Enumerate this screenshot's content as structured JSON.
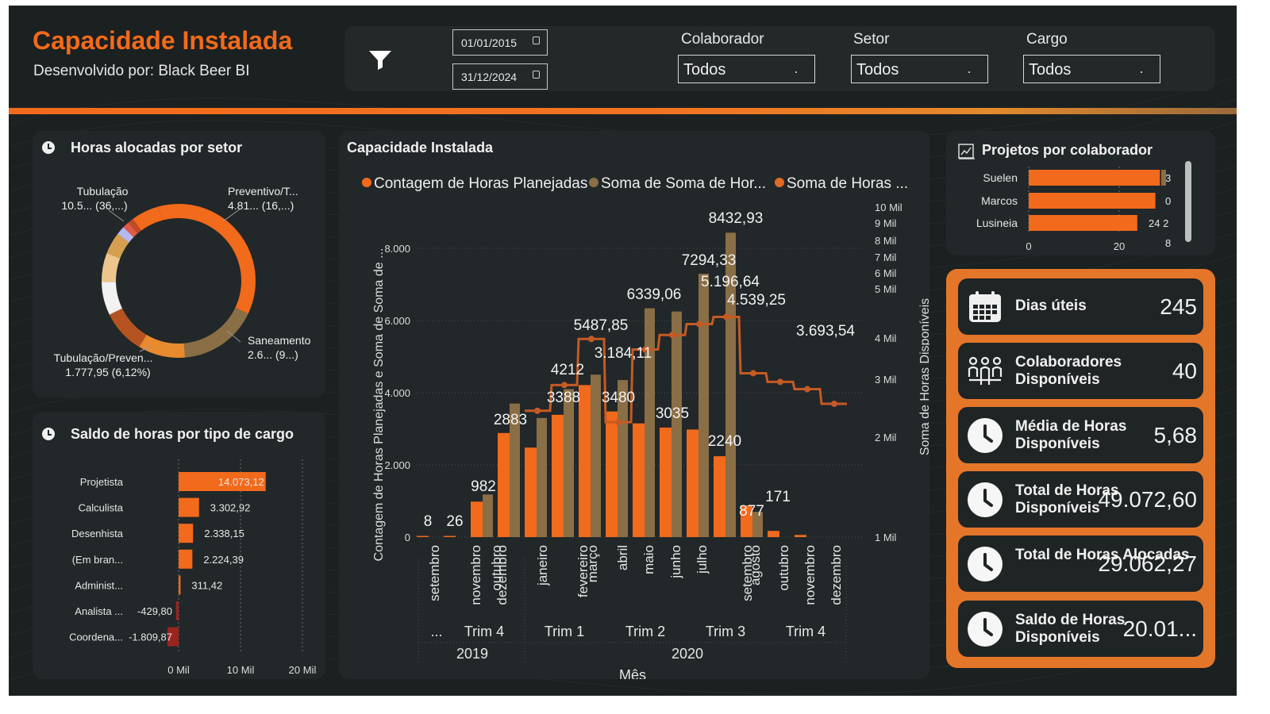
{
  "header": {
    "title": "Capacidade Instalada",
    "subtitle": "Desenvolvido por: Black Beer BI"
  },
  "filters": {
    "date_start": "01/01/2015",
    "date_end": "31/12/2024",
    "colaborador": {
      "label": "Colaborador",
      "value": "Todos"
    },
    "setor": {
      "label": "Setor",
      "value": "Todos"
    },
    "cargo": {
      "label": "Cargo",
      "value": "Todos"
    },
    "icons": {
      "filter": "funnel-icon",
      "calendar": "calendar-icon"
    }
  },
  "colors": {
    "background": "#1b2021",
    "card": "#222729",
    "accent": "#f26a1b",
    "tan": "#8a6e45",
    "kpi_panel": "#e4762a"
  },
  "chart_data": [
    {
      "id": "horas-setor",
      "type": "pie",
      "title": "Horas alocadas por setor",
      "donut": true,
      "labels": [
        {
          "line1": "Tubulação",
          "line2": "10.5... (36,...)"
        },
        {
          "line1": "Preventivo/T...",
          "line2": "4.81... (16,...)"
        },
        {
          "line1": "Saneamento",
          "line2": "2.6... (9...)"
        },
        {
          "line1": "Tubulação/Preven...",
          "line2": "1.777,95 (6,12%)"
        }
      ],
      "slices": [
        {
          "pct": 36.2,
          "color": "#f26a1b"
        },
        {
          "pct": 16.6,
          "color": "#8a6e45"
        },
        {
          "pct": 9.9,
          "color": "#e88a2e"
        },
        {
          "pct": 9.2,
          "color": "#b55420"
        },
        {
          "pct": 7.0,
          "color": "#f2f2f2"
        },
        {
          "pct": 6.1,
          "color": "#eec58c"
        },
        {
          "pct": 4.6,
          "color": "#d4a050"
        },
        {
          "pct": 1.8,
          "color": "#b8b8f0"
        },
        {
          "pct": 1.4,
          "color": "#e05a48"
        },
        {
          "pct": 1.2,
          "color": "#c04a28"
        },
        {
          "pct": 6.0,
          "color": "#f26a1b"
        }
      ]
    },
    {
      "id": "saldo-cargo",
      "type": "bar",
      "orientation": "horizontal",
      "title": "Saldo de horas por tipo de cargo",
      "categories": [
        "Projetista",
        "Calculista",
        "Desenhista",
        "(Em bran...",
        "Administ...",
        "Analista ...",
        "Coordena..."
      ],
      "values": [
        14073.12,
        3302.92,
        2338.15,
        2224.39,
        311.42,
        -429.8,
        -1809.87
      ],
      "value_labels": [
        "14.073,12",
        "3.302,92",
        "2.338,15",
        "2.224,39",
        "311,42",
        "-429,80",
        "-1.809,87"
      ],
      "xticks": [
        "0 Mil",
        "10 Mil",
        "20 Mil"
      ],
      "xlim": [
        -2000,
        22000
      ]
    },
    {
      "id": "capacidade",
      "type": "bar",
      "title": "Capacidade Instalada",
      "legend": [
        "Contagem de Horas Planejadas",
        "Soma de Soma de Hor...",
        "Soma de Horas ..."
      ],
      "legend_placement": "top",
      "xlabel": "Mês",
      "ylabel": "Contagem de Horas Planejadas e Soma de Soma de ...",
      "y2label": "Soma de Horas Disponíveis",
      "yticks": [
        "0",
        "2.000",
        "4.000",
        "6.000",
        "8.000"
      ],
      "ylim": [
        0,
        9000
      ],
      "y2ticks": [
        "1 Mil",
        "2 Mil",
        "3 Mil",
        "4 Mil",
        "5 Mil",
        "6 Mil",
        "7 Mil",
        "8 Mil",
        "9 Mil",
        "10 Mil"
      ],
      "y2_scale": "log",
      "months": [
        "setembro",
        "novembro",
        "dezembro",
        "outubro",
        "janeiro",
        "fevereiro",
        "março",
        "abril",
        "maio",
        "junho",
        "julho",
        "setembro",
        "agosto",
        "outubro",
        "novembro",
        "dezembro"
      ],
      "quarters": [
        {
          "label": "...",
          "year": "2019"
        },
        {
          "label": "Trim 4",
          "year": "2019"
        },
        {
          "label": "Trim 1",
          "year": "2020"
        },
        {
          "label": "Trim 2",
          "year": "2020"
        },
        {
          "label": "Trim 3",
          "year": "2020"
        },
        {
          "label": "Trim 4",
          "year": "2020"
        }
      ],
      "years": [
        "2019",
        "2020"
      ],
      "series": [
        {
          "name": "Contagem de Horas Planejadas",
          "color": "#f26a1b",
          "values": [
            8,
            26,
            982,
            2883,
            2480,
            3388,
            4212,
            3480,
            3150,
            3035,
            2980,
            2240,
            877,
            171,
            60,
            0
          ]
        },
        {
          "name": "Soma de Soma de Hor...",
          "color": "#8a6e45",
          "values": [
            0,
            0,
            1180,
            3700,
            3300,
            4100,
            4500,
            4350,
            6339.06,
            6250,
            7294.33,
            8432.93,
            700,
            0,
            0,
            0
          ]
        },
        {
          "name": "Soma de Horas ...",
          "color": "#c55a24",
          "values": [
            null,
            null,
            null,
            null,
            3500,
            4212,
            5487.85,
            3184.11,
            5196.64,
            5600,
            5900,
            6100,
            4539.25,
            4300,
            4100,
            3693.54
          ]
        }
      ],
      "data_labels": [
        "8",
        "26",
        "982",
        "2883",
        "3388",
        "4212",
        "3480",
        "3035",
        "2240",
        "877",
        "171",
        "5487,85",
        "3.184,11",
        "6339,06",
        "7294,33",
        "8432,93",
        "5.196,64",
        "4.539,25",
        "3.693,54"
      ]
    },
    {
      "id": "projetos-colaborador",
      "type": "bar",
      "orientation": "horizontal",
      "title": "Projetos por colaborador",
      "categories": [
        "Suelen",
        "Marcos",
        "Lusineia"
      ],
      "values": [
        29,
        28,
        24
      ],
      "value_labels": [
        "3",
        "0",
        "24 2"
      ],
      "extra_label": "8",
      "xticks": [
        "0",
        "20"
      ],
      "xlim": [
        0,
        30
      ]
    }
  ],
  "kpis": [
    {
      "label": "Dias úteis",
      "value": "245",
      "icon": "calendar-icon"
    },
    {
      "label": "Colaboradores Disponíveis",
      "value": "40",
      "icon": "people-icon"
    },
    {
      "label": "Média de Horas Disponíveis",
      "value": "5,68",
      "icon": "clock-icon"
    },
    {
      "label": "Total de Horas Disponíveis",
      "value": "49.072,60",
      "icon": "clock-icon"
    },
    {
      "label": "Total de Horas Alocadas",
      "value": "29.062,27",
      "icon": "clock-icon"
    },
    {
      "label": "Saldo de Horas Disponíveis",
      "value": "20.01...",
      "icon": "clock-icon"
    }
  ]
}
